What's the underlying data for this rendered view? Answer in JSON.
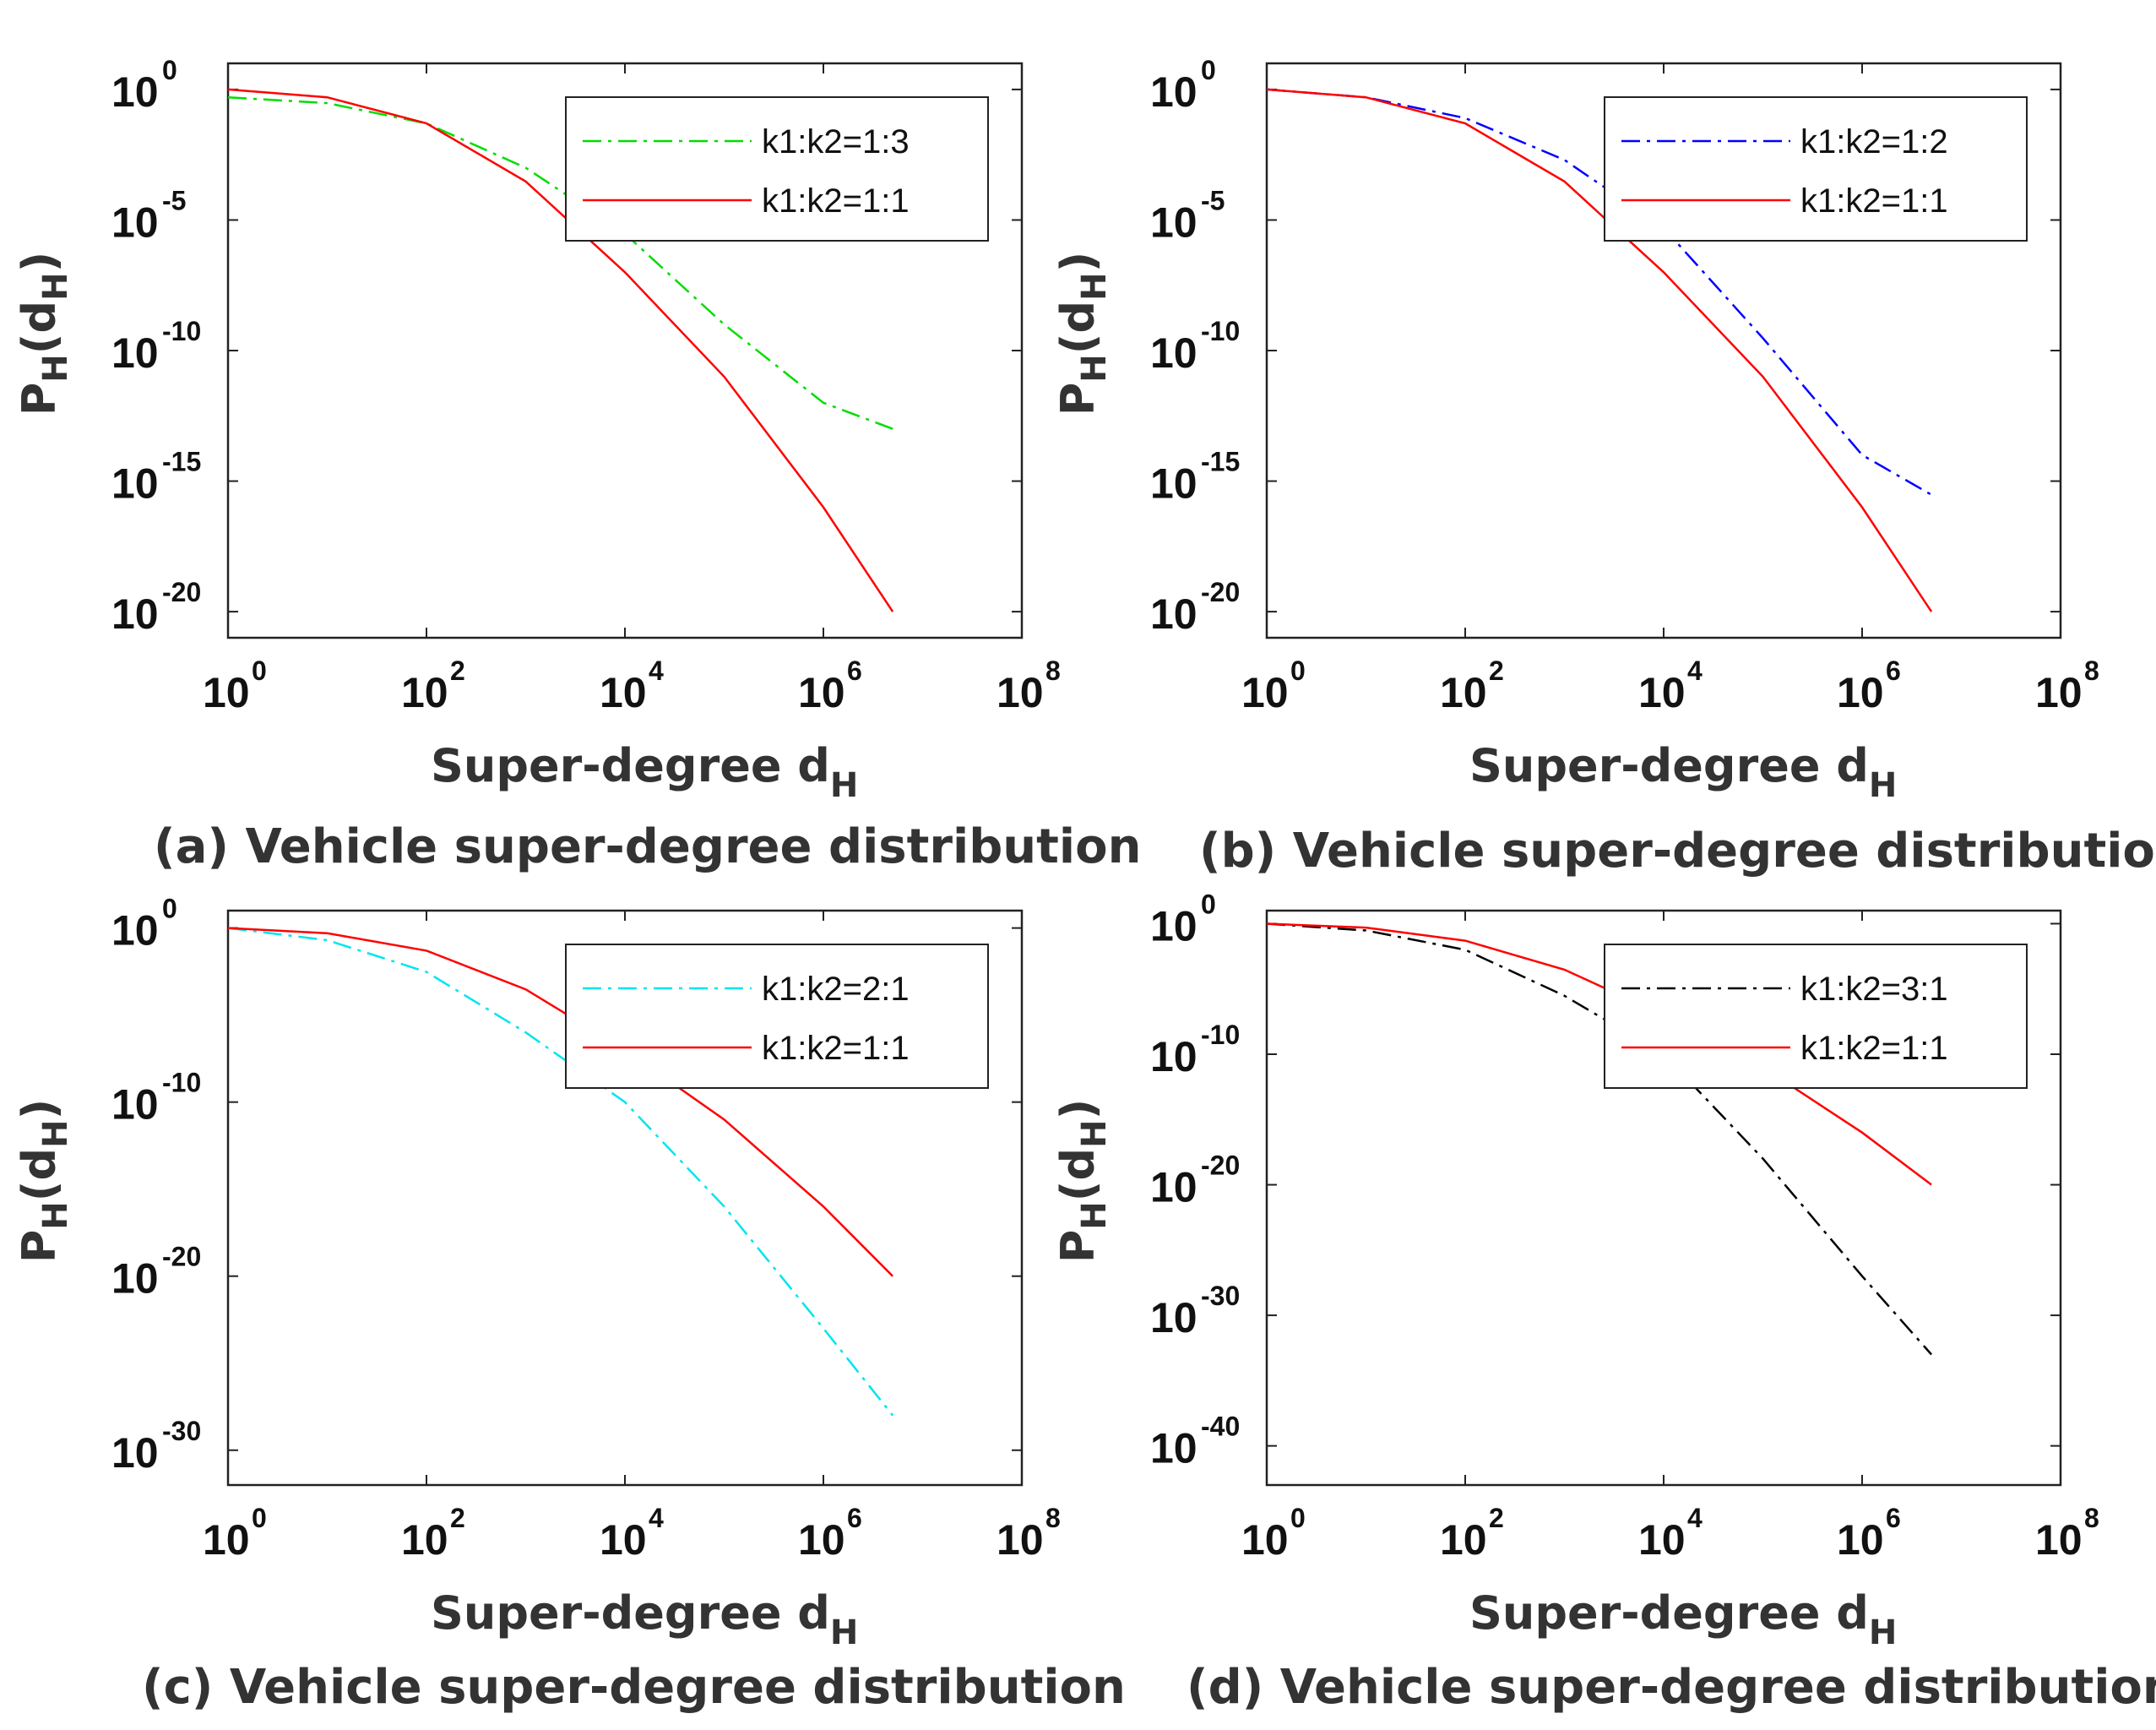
{
  "chart_data": [
    {
      "type": "line",
      "panel": "a",
      "caption": "(a) Vehicle super-degree distribution",
      "xlabel": "Super-degree d",
      "xlabel_sub": "H",
      "ylabel": "P",
      "ylabel_sub": "H",
      "ylabel_arg": "d",
      "ylabel_arg_sub": "H",
      "xscale": "log",
      "yscale": "log",
      "xlim": [
        1,
        100000000
      ],
      "ylim": [
        1e-21,
        10
      ],
      "x_ticks": [
        {
          "base": "10",
          "exp": "0"
        },
        {
          "base": "10",
          "exp": "2"
        },
        {
          "base": "10",
          "exp": "4"
        },
        {
          "base": "10",
          "exp": "6"
        },
        {
          "base": "10",
          "exp": "8"
        }
      ],
      "y_ticks": [
        {
          "base": "10",
          "exp": "0"
        },
        {
          "base": "10",
          "exp": "-5"
        },
        {
          "base": "10",
          "exp": "-10"
        },
        {
          "base": "10",
          "exp": "-15"
        },
        {
          "base": "10",
          "exp": "-20"
        }
      ],
      "legend_position": "top-right",
      "series": [
        {
          "name": "k1:k2=1:3",
          "color": "#00dd00",
          "style": "dash-dot",
          "x": [
            1,
            10,
            100,
            1000,
            10000,
            100000,
            1000000,
            5000000
          ],
          "y": [
            0.5,
            0.3,
            0.05,
            0.001,
            3e-06,
            1e-09,
            1e-12,
            1e-13
          ]
        },
        {
          "name": "k1:k2=1:1",
          "color": "#ff0000",
          "style": "solid",
          "x": [
            1,
            10,
            100,
            1000,
            10000,
            100000,
            1000000,
            5000000
          ],
          "y": [
            1,
            0.5,
            0.05,
            0.0003,
            1e-07,
            1e-11,
            1e-16,
            1e-20
          ]
        }
      ]
    },
    {
      "type": "line",
      "panel": "b",
      "caption": "(b) Vehicle super-degree distribution",
      "xlabel": "Super-degree d",
      "xlabel_sub": "H",
      "ylabel": "P",
      "ylabel_sub": "H",
      "ylabel_arg": "d",
      "ylabel_arg_sub": "H",
      "xscale": "log",
      "yscale": "log",
      "xlim": [
        1,
        100000000
      ],
      "ylim": [
        1e-21,
        10
      ],
      "x_ticks": [
        {
          "base": "10",
          "exp": "0"
        },
        {
          "base": "10",
          "exp": "2"
        },
        {
          "base": "10",
          "exp": "4"
        },
        {
          "base": "10",
          "exp": "6"
        },
        {
          "base": "10",
          "exp": "8"
        }
      ],
      "y_ticks": [
        {
          "base": "10",
          "exp": "0"
        },
        {
          "base": "10",
          "exp": "-5"
        },
        {
          "base": "10",
          "exp": "-10"
        },
        {
          "base": "10",
          "exp": "-15"
        },
        {
          "base": "10",
          "exp": "-20"
        }
      ],
      "legend_position": "top-right",
      "series": [
        {
          "name": "k1:k2=1:2",
          "color": "#0000ff",
          "style": "dash-dot",
          "x": [
            1,
            10,
            100,
            1000,
            10000,
            100000,
            1000000,
            5000000
          ],
          "y": [
            1,
            0.5,
            0.08,
            0.002,
            5e-06,
            3e-10,
            1e-14,
            3e-16
          ]
        },
        {
          "name": "k1:k2=1:1",
          "color": "#ff0000",
          "style": "solid",
          "x": [
            1,
            10,
            100,
            1000,
            10000,
            100000,
            1000000,
            5000000
          ],
          "y": [
            1,
            0.5,
            0.05,
            0.0003,
            1e-07,
            1e-11,
            1e-16,
            1e-20
          ]
        }
      ]
    },
    {
      "type": "line",
      "panel": "c",
      "caption": "(c) Vehicle super-degree distribution",
      "xlabel": "Super-degree d",
      "xlabel_sub": "H",
      "ylabel": "P",
      "ylabel_sub": "H",
      "ylabel_arg": "d",
      "ylabel_arg_sub": "H",
      "xscale": "log",
      "yscale": "log",
      "xlim": [
        1,
        100000000
      ],
      "ylim": [
        1e-32,
        10
      ],
      "x_ticks": [
        {
          "base": "10",
          "exp": "0"
        },
        {
          "base": "10",
          "exp": "2"
        },
        {
          "base": "10",
          "exp": "4"
        },
        {
          "base": "10",
          "exp": "6"
        },
        {
          "base": "10",
          "exp": "8"
        }
      ],
      "y_ticks": [
        {
          "base": "10",
          "exp": "0"
        },
        {
          "base": "10",
          "exp": "-10"
        },
        {
          "base": "10",
          "exp": "-20"
        },
        {
          "base": "10",
          "exp": "-30"
        }
      ],
      "legend_position": "top-right",
      "series": [
        {
          "name": "k1:k2=2:1",
          "color": "#00e5ee",
          "style": "dash-dot",
          "x": [
            1,
            10,
            100,
            1000,
            10000,
            100000,
            1000000,
            5000000
          ],
          "y": [
            1,
            0.2,
            0.003,
            1e-06,
            1e-10,
            1e-16,
            1e-23,
            1e-28
          ]
        },
        {
          "name": "k1:k2=1:1",
          "color": "#ff0000",
          "style": "solid",
          "x": [
            1,
            10,
            100,
            1000,
            10000,
            100000,
            1000000,
            5000000
          ],
          "y": [
            1,
            0.5,
            0.05,
            0.0003,
            1e-07,
            1e-11,
            1e-16,
            1e-20
          ]
        }
      ]
    },
    {
      "type": "line",
      "panel": "d",
      "caption": "(d) Vehicle super-degree distribution",
      "xlabel": "Super-degree d",
      "xlabel_sub": "H",
      "ylabel": "P",
      "ylabel_sub": "H",
      "ylabel_arg": "d",
      "ylabel_arg_sub": "H",
      "xscale": "log",
      "yscale": "log",
      "xlim": [
        1,
        100000000
      ],
      "ylim": [
        1e-43,
        10
      ],
      "x_ticks": [
        {
          "base": "10",
          "exp": "0"
        },
        {
          "base": "10",
          "exp": "2"
        },
        {
          "base": "10",
          "exp": "4"
        },
        {
          "base": "10",
          "exp": "6"
        },
        {
          "base": "10",
          "exp": "8"
        }
      ],
      "y_ticks": [
        {
          "base": "10",
          "exp": "0"
        },
        {
          "base": "10",
          "exp": "-10"
        },
        {
          "base": "10",
          "exp": "-20"
        },
        {
          "base": "10",
          "exp": "-30"
        },
        {
          "base": "10",
          "exp": "-40"
        }
      ],
      "legend_position": "top-right",
      "series": [
        {
          "name": "k1:k2=3:1",
          "color": "#000000",
          "style": "dash-dot",
          "x": [
            1,
            10,
            100,
            1000,
            10000,
            100000,
            1000000,
            5000000
          ],
          "y": [
            1,
            0.3,
            0.01,
            3e-06,
            1e-10,
            1e-18,
            1e-27,
            1e-33
          ]
        },
        {
          "name": "k1:k2=1:1",
          "color": "#ff0000",
          "style": "solid",
          "x": [
            1,
            10,
            100,
            1000,
            10000,
            100000,
            1000000,
            5000000
          ],
          "y": [
            1,
            0.5,
            0.05,
            0.0003,
            1e-07,
            1e-11,
            1e-16,
            1e-20
          ]
        }
      ]
    }
  ]
}
